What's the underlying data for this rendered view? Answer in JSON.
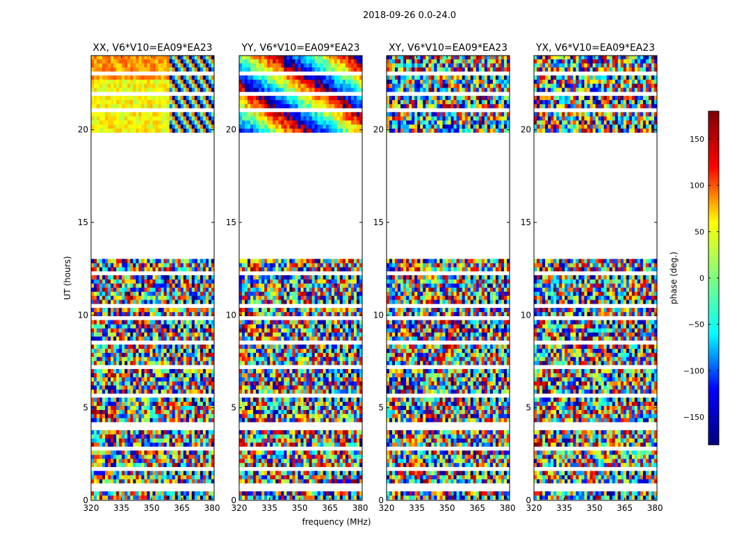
{
  "figure": {
    "suptitle": "2018-09-26 0.0-24.0"
  },
  "chart_data": {
    "type": "heatmap",
    "description_axes": "time vs frequency phase waterfall, 4 polarization panels",
    "xlabel": "frequency (MHz)",
    "ylabel": "UT (hours)",
    "xlim": [
      320,
      381
    ],
    "ylim": [
      0,
      24
    ],
    "xticks": [
      320,
      335,
      350,
      365,
      380
    ],
    "yticks": [
      0,
      5,
      10,
      15,
      20
    ],
    "gap_hours": [
      13.0,
      19.8
    ],
    "colorbar": {
      "label": "phase (deg.)",
      "range": [
        -180,
        180
      ],
      "ticks": [
        -150,
        -100,
        -50,
        0,
        50,
        100,
        150
      ],
      "colormap": "jet",
      "colors": [
        "#00007f",
        "#0000ff",
        "#00ffff",
        "#7fff7f",
        "#ffff00",
        "#ff0000",
        "#7f0000"
      ]
    },
    "panels": [
      {
        "title": "XX, V6*V10=EA09*EA23",
        "pol": "XX"
      },
      {
        "title": "YY, V6*V10=EA09*EA23",
        "pol": "YY"
      },
      {
        "title": "XY, V6*V10=EA09*EA23",
        "pol": "XY"
      },
      {
        "title": "YX, V6*V10=EA09*EA23",
        "pol": "YX"
      }
    ]
  }
}
